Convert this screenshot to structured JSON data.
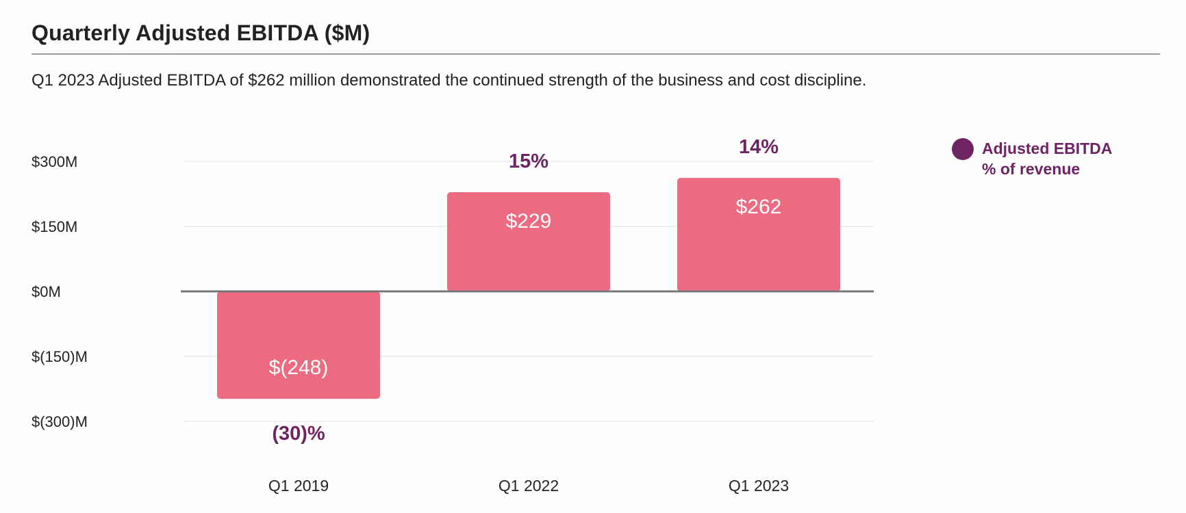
{
  "header": {
    "title": "Quarterly Adjusted EBITDA ($M)",
    "subtitle": "Q1 2023 Adjusted EBITDA of $262 million demonstrated the continued strength of the business and cost discipline."
  },
  "legend": {
    "line1": "Adjusted EBITDA",
    "line2": "% of revenue",
    "marker": "circle"
  },
  "colors": {
    "bar": "#ec6b80",
    "percent_label": "#6e2463",
    "legend_dot": "#6e2463",
    "gridline": "#e6e6e6",
    "zero_line": "#777777"
  },
  "chart_data": {
    "type": "bar",
    "title": "Quarterly Adjusted EBITDA ($M)",
    "xlabel": "",
    "ylabel": "",
    "categories": [
      "Q1 2019",
      "Q1 2022",
      "Q1 2023"
    ],
    "values": [
      -248,
      229,
      262
    ],
    "value_labels": [
      "$(248)",
      "$229",
      "$262"
    ],
    "percent_of_revenue": [
      -30,
      15,
      14
    ],
    "percent_labels": [
      "(30)%",
      "15%",
      "14%"
    ],
    "yticks": [
      300,
      150,
      0,
      -150,
      -300
    ],
    "ytick_labels": [
      "$300M",
      "$150M",
      "$0M",
      "$(150)M",
      "$(300)M"
    ],
    "ylim": [
      -300,
      300
    ],
    "grid": true,
    "legend_position": "top-right"
  }
}
